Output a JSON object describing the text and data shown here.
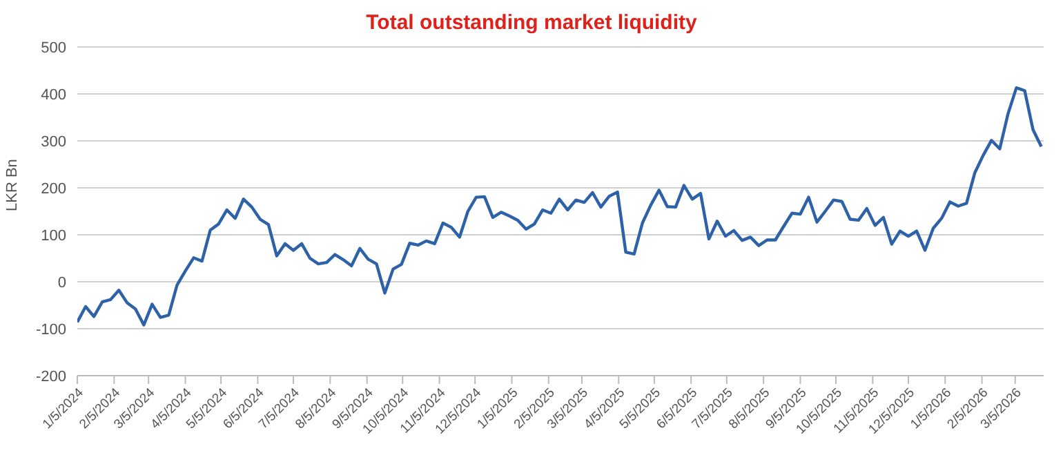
{
  "chart_data": {
    "type": "line",
    "title": "Total outstanding market liquidity",
    "ylabel": "LKR Bn",
    "x": [
      "2024-01-05",
      "2024-01-12",
      "2024-01-19",
      "2024-01-26",
      "2024-02-02",
      "2024-02-09",
      "2024-02-16",
      "2024-02-23",
      "2024-03-01",
      "2024-03-08",
      "2024-03-15",
      "2024-03-22",
      "2024-03-29",
      "2024-04-05",
      "2024-04-12",
      "2024-04-19",
      "2024-04-26",
      "2024-05-03",
      "2024-05-10",
      "2024-05-17",
      "2024-05-24",
      "2024-05-31",
      "2024-06-07",
      "2024-06-14",
      "2024-06-21",
      "2024-06-28",
      "2024-07-05",
      "2024-07-12",
      "2024-07-19",
      "2024-07-26",
      "2024-08-02",
      "2024-08-09",
      "2024-08-16",
      "2024-08-23",
      "2024-08-30",
      "2024-09-06",
      "2024-09-13",
      "2024-09-20",
      "2024-09-27",
      "2024-10-04",
      "2024-10-11",
      "2024-10-18",
      "2024-10-25",
      "2024-11-01",
      "2024-11-08",
      "2024-11-15",
      "2024-11-22",
      "2024-11-29",
      "2024-12-06",
      "2024-12-13",
      "2024-12-20",
      "2024-12-27",
      "2025-01-03",
      "2025-01-10",
      "2025-01-17",
      "2025-01-24",
      "2025-01-31",
      "2025-02-07",
      "2025-02-14",
      "2025-02-21",
      "2025-02-28",
      "2025-03-07",
      "2025-03-14",
      "2025-03-21",
      "2025-03-28",
      "2025-04-04",
      "2025-04-11",
      "2025-04-18",
      "2025-04-25",
      "2025-05-02",
      "2025-05-09",
      "2025-05-16",
      "2025-05-23",
      "2025-05-30",
      "2025-06-06",
      "2025-06-13",
      "2025-06-20",
      "2025-06-27",
      "2025-07-04",
      "2025-07-11",
      "2025-07-18",
      "2025-07-25",
      "2025-08-01",
      "2025-08-08",
      "2025-08-15",
      "2025-08-22",
      "2025-08-29",
      "2025-09-05",
      "2025-09-12",
      "2025-09-19",
      "2025-09-26",
      "2025-10-03",
      "2025-10-10",
      "2025-10-17",
      "2025-10-24",
      "2025-10-31",
      "2025-11-07",
      "2025-11-14",
      "2025-11-21",
      "2025-11-28",
      "2025-12-05",
      "2025-12-12",
      "2025-12-19",
      "2025-12-26",
      "2026-01-02",
      "2026-01-09",
      "2026-01-16",
      "2026-01-23",
      "2026-01-30",
      "2026-02-06",
      "2026-02-13",
      "2026-02-20",
      "2026-02-27",
      "2026-03-06",
      "2026-03-13",
      "2026-03-20",
      "2026-03-27"
    ],
    "series": [
      {
        "color": "#2e62a8",
        "values": [
          -86,
          -53,
          -74,
          -43,
          -38,
          -18,
          -45,
          -58,
          -92,
          -48,
          -76,
          -71,
          -7,
          23,
          51,
          44,
          110,
          123,
          153,
          135,
          176,
          159,
          133,
          122,
          55,
          81,
          67,
          81,
          50,
          38,
          41,
          58,
          47,
          34,
          71,
          48,
          38,
          -24,
          27,
          37,
          82,
          78,
          87,
          81,
          125,
          116,
          95,
          150,
          180,
          181,
          137,
          148,
          140,
          131,
          112,
          123,
          153,
          146,
          176,
          153,
          174,
          169,
          190,
          159,
          182,
          191,
          63,
          59,
          125,
          163,
          195,
          160,
          159,
          205,
          176,
          188,
          91,
          129,
          97,
          109,
          88,
          95,
          77,
          89,
          89,
          118,
          146,
          144,
          180,
          127,
          150,
          174,
          171,
          133,
          131,
          156,
          120,
          137,
          80,
          108,
          97,
          108,
          67,
          114,
          135,
          170,
          161,
          167,
          232,
          269,
          301,
          283,
          358,
          413,
          407,
          324,
          288
        ]
      }
    ],
    "xlim": [
      "2024-01-05",
      "2026-03-29"
    ],
    "xticks": [
      {
        "value": "2024-01-05",
        "label": "1/5/2024"
      },
      {
        "value": "2024-02-05",
        "label": "2/5/2024"
      },
      {
        "value": "2024-03-05",
        "label": "3/5/2024"
      },
      {
        "value": "2024-04-05",
        "label": "4/5/2024"
      },
      {
        "value": "2024-05-05",
        "label": "5/5/2024"
      },
      {
        "value": "2024-06-05",
        "label": "6/5/2024"
      },
      {
        "value": "2024-07-05",
        "label": "7/5/2024"
      },
      {
        "value": "2024-08-05",
        "label": "8/5/2024"
      },
      {
        "value": "2024-09-05",
        "label": "9/5/2024"
      },
      {
        "value": "2024-10-05",
        "label": "10/5/2024"
      },
      {
        "value": "2024-11-05",
        "label": "11/5/2024"
      },
      {
        "value": "2024-12-05",
        "label": "12/5/2024"
      },
      {
        "value": "2025-01-05",
        "label": "1/5/2025"
      },
      {
        "value": "2025-02-05",
        "label": "2/5/2025"
      },
      {
        "value": "2025-03-05",
        "label": "3/5/2025"
      },
      {
        "value": "2025-04-05",
        "label": "4/5/2025"
      },
      {
        "value": "2025-05-05",
        "label": "5/5/2025"
      },
      {
        "value": "2025-06-05",
        "label": "6/5/2025"
      },
      {
        "value": "2025-07-05",
        "label": "7/5/2025"
      },
      {
        "value": "2025-08-05",
        "label": "8/5/2025"
      },
      {
        "value": "2025-09-05",
        "label": "9/5/2025"
      },
      {
        "value": "2025-10-05",
        "label": "10/5/2025"
      },
      {
        "value": "2025-11-05",
        "label": "11/5/2025"
      },
      {
        "value": "2025-12-05",
        "label": "12/5/2025"
      },
      {
        "value": "2026-01-05",
        "label": "1/5/2026"
      },
      {
        "value": "2026-02-05",
        "label": "2/5/2026"
      },
      {
        "value": "2026-03-05",
        "label": "3/5/2026"
      }
    ],
    "ylim": [
      -200,
      500
    ],
    "yticks": [
      -200,
      -100,
      0,
      100,
      200,
      300,
      400,
      500
    ],
    "grid": "y",
    "marker": "none",
    "line_style": "solid",
    "legend": false
  }
}
